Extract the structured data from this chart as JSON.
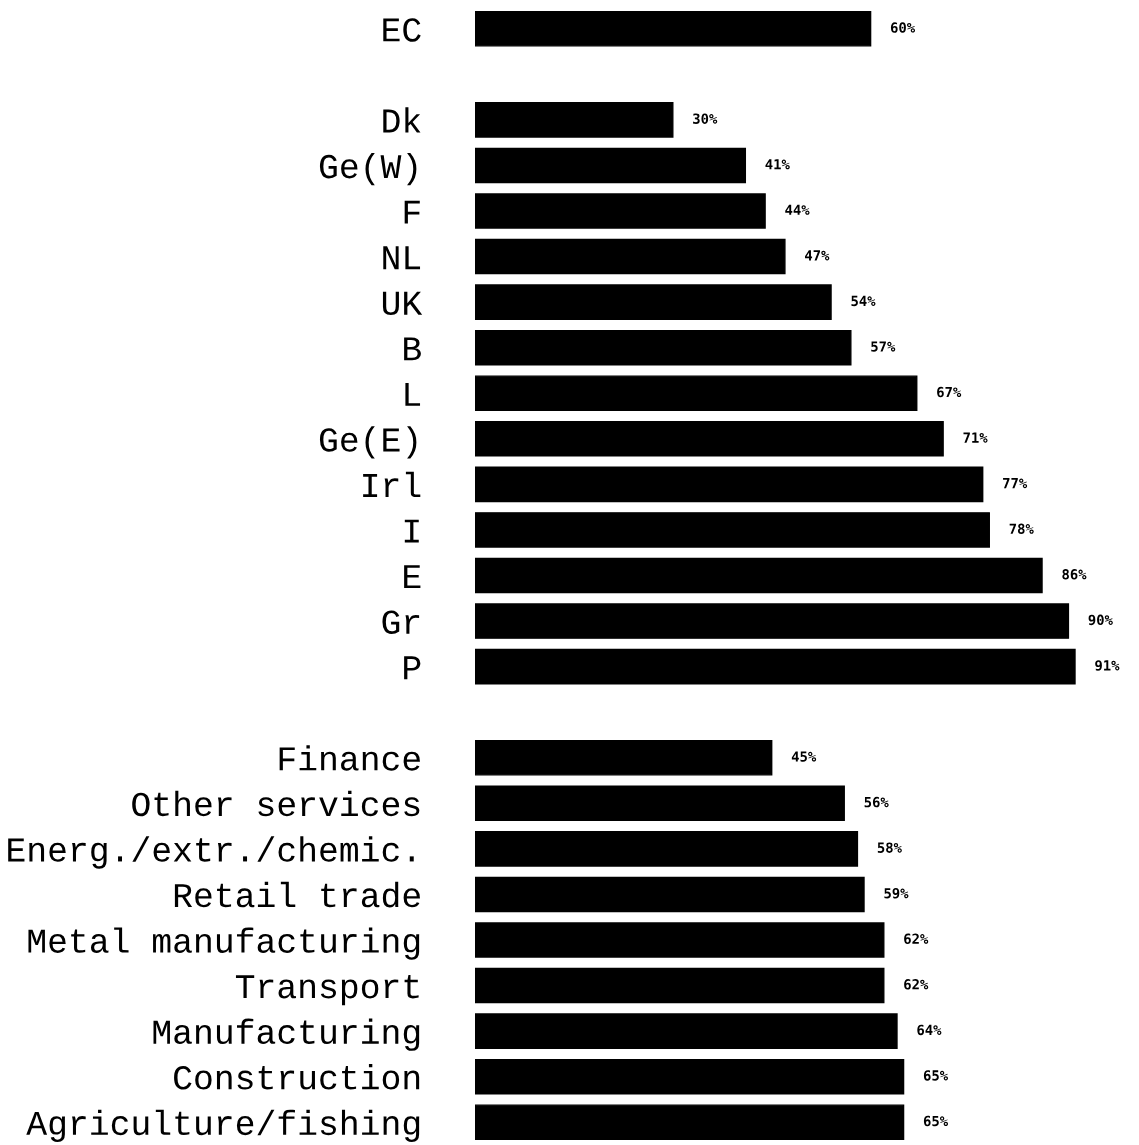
{
  "chart_data": {
    "type": "bar",
    "orientation": "horizontal",
    "color": "#000000",
    "categories": [
      "EC",
      null,
      "Dk",
      "Ge(W)",
      "F",
      "NL",
      "UK",
      "B",
      "L",
      "Ge(E)",
      "Irl",
      "I",
      "E",
      "Gr",
      "P",
      null,
      "Finance",
      "Other services",
      "Energ./extr./chemic.",
      "Retail trade",
      "Metal manufacturing",
      "Transport",
      "Manufacturing",
      "Construction",
      "Agriculture/fishing"
    ],
    "values": [
      60,
      null,
      30,
      41,
      44,
      47,
      54,
      57,
      67,
      71,
      77,
      78,
      86,
      90,
      91,
      null,
      45,
      56,
      58,
      59,
      62,
      62,
      64,
      65,
      65
    ],
    "value_labels": [
      "60%",
      null,
      "30%",
      "41%",
      "44%",
      "47%",
      "54%",
      "57%",
      "67%",
      "71%",
      "77%",
      "78%",
      "86%",
      "90%",
      "91%",
      null,
      "45%",
      "56%",
      "58%",
      "59%",
      "62%",
      "62%",
      "64%",
      "65%",
      "65%"
    ]
  }
}
